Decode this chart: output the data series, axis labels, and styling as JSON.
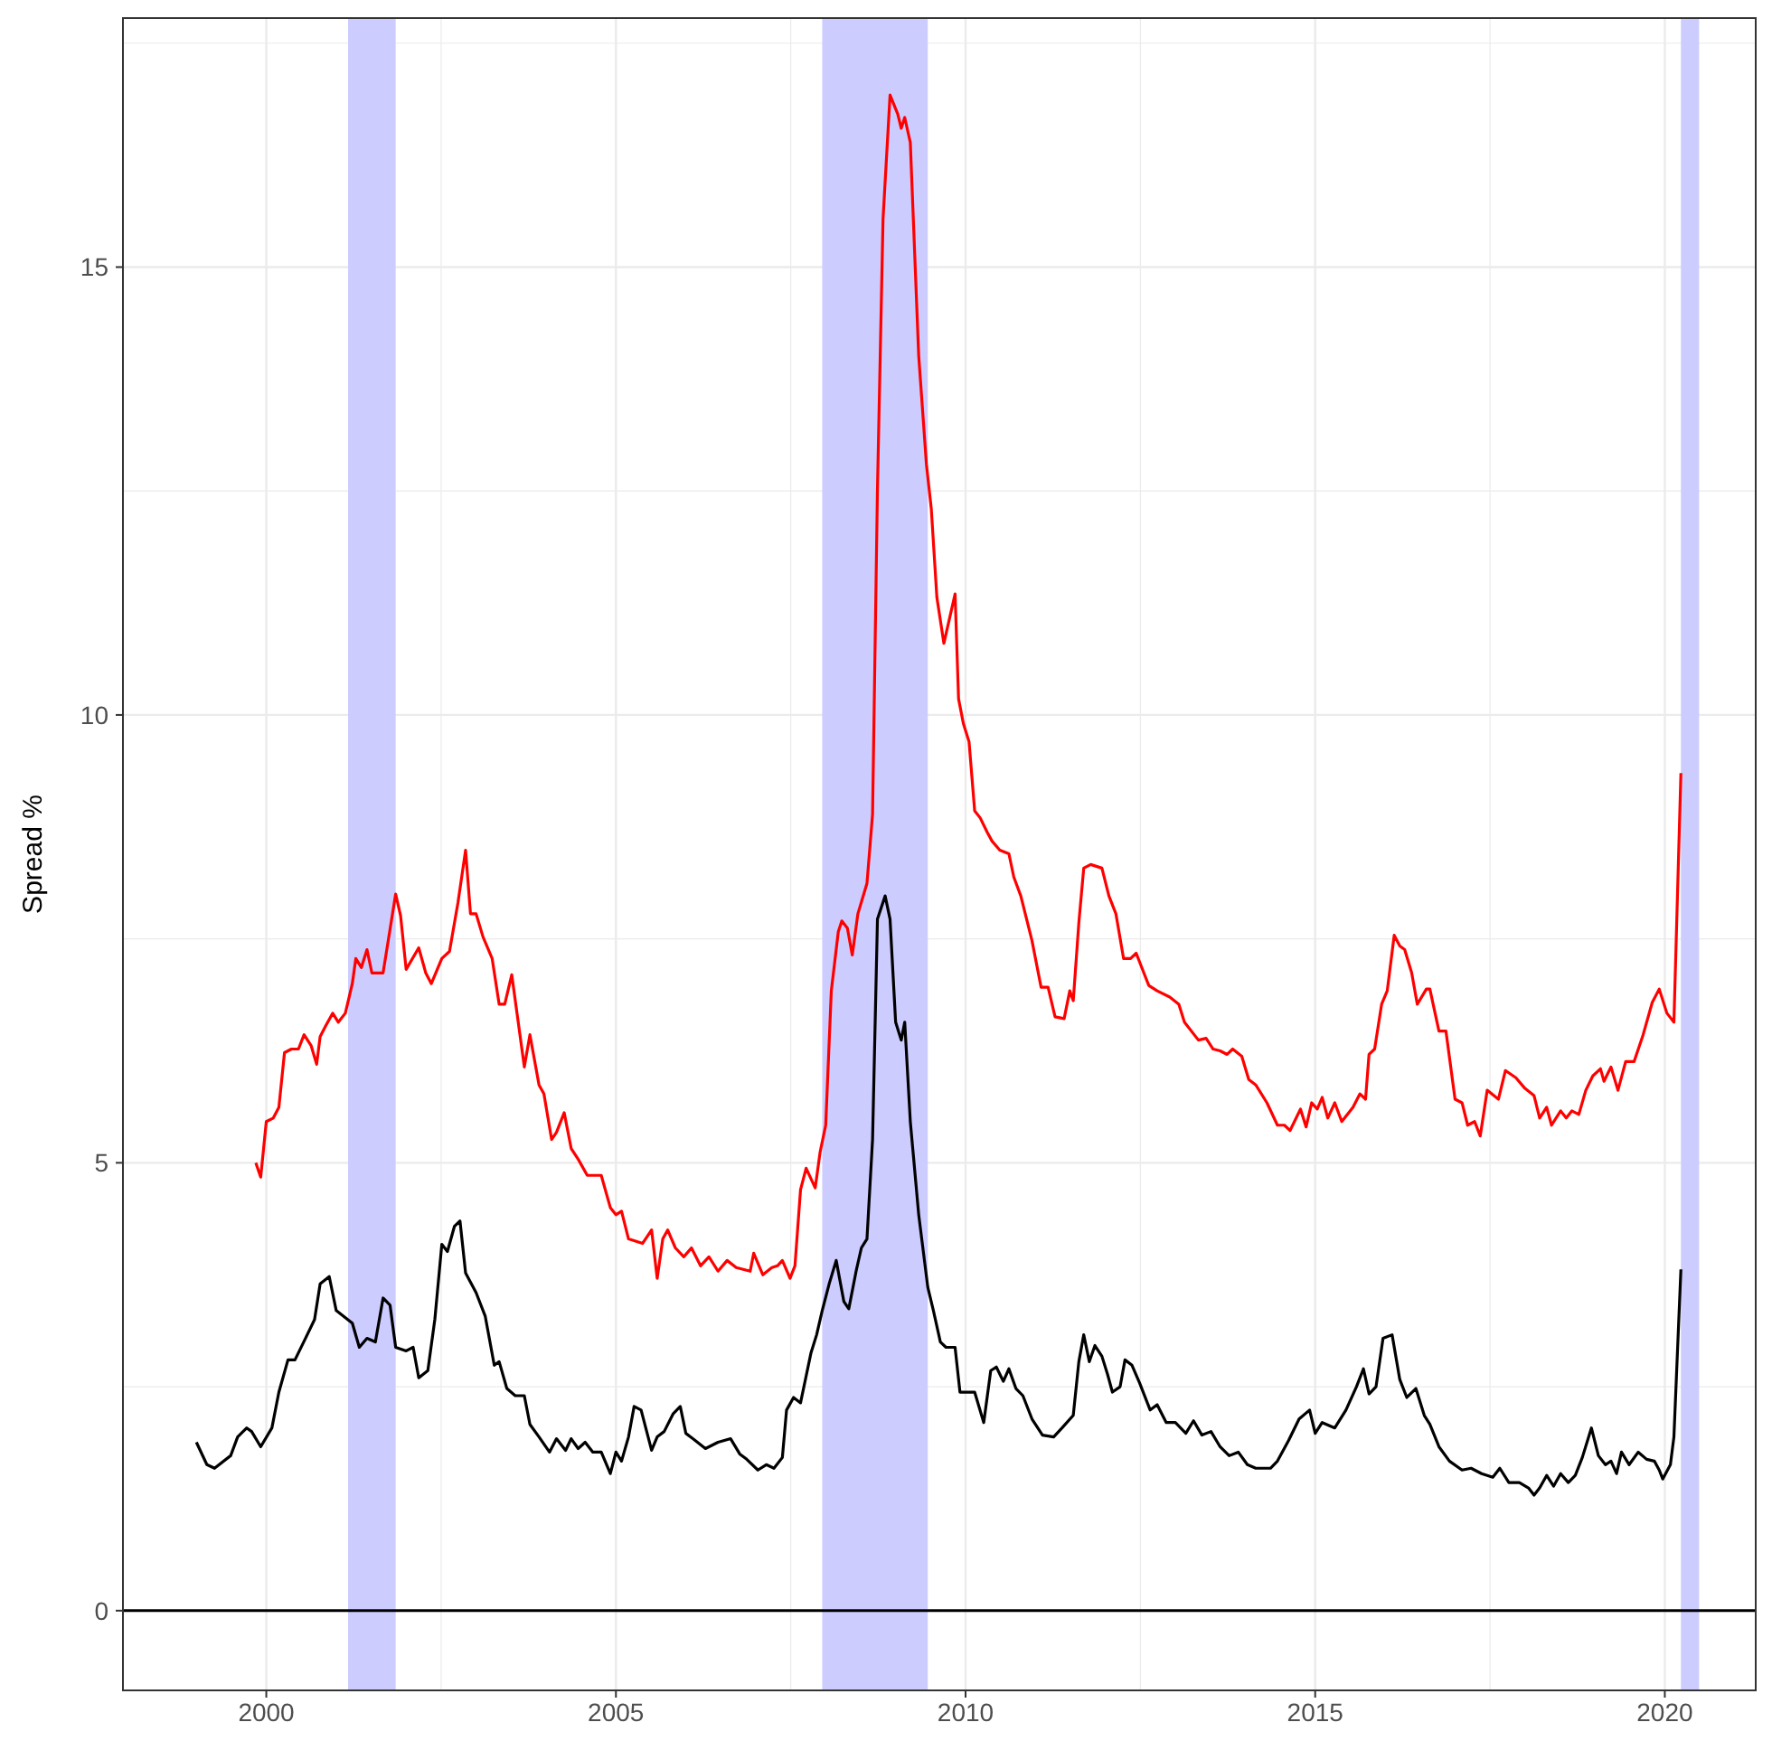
{
  "chart_data": {
    "type": "line",
    "ylabel": "Spread %",
    "xlim": [
      1997.95,
      2021.3
    ],
    "ylim": [
      -0.89,
      17.78
    ],
    "xticks": [
      2000,
      2005,
      2010,
      2015,
      2020
    ],
    "yticks": [
      0,
      5,
      10,
      15
    ],
    "grid": true,
    "line_style": "solid",
    "marker": "none",
    "ref_lines": [
      {
        "axis": "y",
        "value": 0,
        "color": "#000000",
        "line_style": "solid"
      }
    ],
    "bands": [
      {
        "axis": "x",
        "from": 2001.17,
        "to": 2001.85,
        "color": "#ccccff"
      },
      {
        "axis": "x",
        "from": 2007.95,
        "to": 2009.46,
        "color": "#ccccff"
      },
      {
        "axis": "x",
        "from": 2020.23,
        "to": 2020.49,
        "color": "#ccccff"
      }
    ],
    "series": [
      {
        "color": "#ff0000",
        "x": [
          1999.85,
          1999.92,
          2000.0,
          2000.1,
          2000.18,
          2000.26,
          2000.36,
          2000.46,
          2000.54,
          2000.64,
          2000.72,
          2000.77,
          2000.85,
          2000.95,
          2001.03,
          2001.13,
          2001.23,
          2001.28,
          2001.36,
          2001.44,
          2001.51,
          2001.67,
          2001.85,
          2001.92,
          2002.0,
          2002.18,
          2002.28,
          2002.36,
          2002.51,
          2002.62,
          2002.74,
          2002.85,
          2002.92,
          2003.0,
          2003.1,
          2003.23,
          2003.33,
          2003.41,
          2003.51,
          2003.69,
          2003.77,
          2003.9,
          2003.97,
          2004.08,
          2004.15,
          2004.26,
          2004.36,
          2004.46,
          2004.59,
          2004.79,
          2004.92,
          2005.0,
          2005.08,
          2005.18,
          2005.38,
          2005.51,
          2005.59,
          2005.67,
          2005.74,
          2005.85,
          2005.97,
          2006.08,
          2006.21,
          2006.33,
          2006.46,
          2006.59,
          2006.72,
          2006.92,
          2006.97,
          2007.1,
          2007.23,
          2007.31,
          2007.38,
          2007.49,
          2007.56,
          2007.64,
          2007.72,
          2007.85,
          2007.92,
          2008.0,
          2008.08,
          2008.18,
          2008.23,
          2008.31,
          2008.38,
          2008.46,
          2008.59,
          2008.67,
          2008.74,
          2008.82,
          2008.92,
          2009.03,
          2009.08,
          2009.13,
          2009.21,
          2009.33,
          2009.44,
          2009.51,
          2009.59,
          2009.69,
          2009.85,
          2009.9,
          2009.97,
          2010.05,
          2010.13,
          2010.21,
          2010.31,
          2010.38,
          2010.49,
          2010.62,
          2010.69,
          2010.79,
          2010.95,
          2011.08,
          2011.18,
          2011.28,
          2011.41,
          2011.49,
          2011.54,
          2011.62,
          2011.69,
          2011.79,
          2011.95,
          2012.05,
          2012.15,
          2012.26,
          2012.36,
          2012.44,
          2012.62,
          2012.74,
          2012.92,
          2013.05,
          2013.13,
          2013.33,
          2013.44,
          2013.54,
          2013.64,
          2013.74,
          2013.82,
          2013.95,
          2014.05,
          2014.15,
          2014.31,
          2014.46,
          2014.56,
          2014.64,
          2014.79,
          2014.87,
          2014.95,
          2015.03,
          2015.1,
          2015.18,
          2015.28,
          2015.38,
          2015.54,
          2015.64,
          2015.72,
          2015.77,
          2015.85,
          2015.95,
          2016.03,
          2016.13,
          2016.21,
          2016.28,
          2016.38,
          2016.46,
          2016.59,
          2016.64,
          2016.77,
          2016.87,
          2017.0,
          2017.1,
          2017.18,
          2017.28,
          2017.36,
          2017.46,
          2017.62,
          2017.72,
          2017.87,
          2018.0,
          2018.13,
          2018.21,
          2018.31,
          2018.38,
          2018.51,
          2018.59,
          2018.67,
          2018.77,
          2018.87,
          2018.97,
          2019.08,
          2019.13,
          2019.23,
          2019.33,
          2019.44,
          2019.56,
          2019.69,
          2019.82,
          2019.92,
          2020.03,
          2020.13,
          2020.23
        ],
        "values": [
          5.0,
          4.84,
          5.46,
          5.5,
          5.62,
          6.23,
          6.27,
          6.27,
          6.43,
          6.31,
          6.1,
          6.41,
          6.53,
          6.67,
          6.57,
          6.67,
          7.0,
          7.28,
          7.18,
          7.38,
          7.12,
          7.12,
          8.0,
          7.76,
          7.16,
          7.4,
          7.12,
          7.0,
          7.28,
          7.36,
          7.9,
          8.49,
          7.78,
          7.78,
          7.52,
          7.28,
          6.77,
          6.77,
          7.1,
          6.07,
          6.43,
          5.87,
          5.77,
          5.26,
          5.34,
          5.56,
          5.16,
          5.04,
          4.86,
          4.86,
          4.5,
          4.42,
          4.46,
          4.15,
          4.1,
          4.25,
          3.71,
          4.15,
          4.25,
          4.05,
          3.95,
          4.05,
          3.85,
          3.95,
          3.79,
          3.91,
          3.83,
          3.79,
          3.99,
          3.75,
          3.83,
          3.85,
          3.91,
          3.71,
          3.85,
          4.7,
          4.94,
          4.72,
          5.12,
          5.42,
          6.92,
          7.58,
          7.7,
          7.62,
          7.32,
          7.78,
          8.12,
          8.89,
          12.52,
          15.54,
          16.92,
          16.71,
          16.55,
          16.67,
          16.39,
          14.01,
          12.8,
          12.3,
          11.31,
          10.8,
          11.35,
          10.18,
          9.9,
          9.7,
          8.93,
          8.85,
          8.69,
          8.59,
          8.49,
          8.45,
          8.19,
          7.98,
          7.48,
          6.96,
          6.96,
          6.63,
          6.61,
          6.92,
          6.81,
          7.68,
          8.29,
          8.33,
          8.29,
          7.98,
          7.78,
          7.28,
          7.28,
          7.34,
          6.98,
          6.92,
          6.85,
          6.77,
          6.57,
          6.37,
          6.39,
          6.27,
          6.25,
          6.21,
          6.27,
          6.19,
          5.93,
          5.87,
          5.67,
          5.42,
          5.42,
          5.36,
          5.6,
          5.4,
          5.67,
          5.6,
          5.73,
          5.5,
          5.67,
          5.46,
          5.62,
          5.77,
          5.71,
          6.21,
          6.27,
          6.77,
          6.92,
          7.54,
          7.42,
          7.38,
          7.12,
          6.77,
          6.94,
          6.94,
          6.47,
          6.47,
          5.71,
          5.67,
          5.42,
          5.46,
          5.3,
          5.81,
          5.71,
          6.03,
          5.95,
          5.83,
          5.75,
          5.5,
          5.62,
          5.42,
          5.58,
          5.5,
          5.58,
          5.54,
          5.81,
          5.97,
          6.05,
          5.91,
          6.07,
          5.81,
          6.13,
          6.13,
          6.43,
          6.79,
          6.94,
          6.67,
          6.57,
          9.35
        ]
      },
      {
        "color": "#000000",
        "x": [
          1999.0,
          1999.15,
          1999.26,
          1999.49,
          1999.59,
          1999.72,
          1999.79,
          1999.92,
          2000.08,
          2000.18,
          2000.31,
          2000.41,
          2000.56,
          2000.69,
          2000.77,
          2000.9,
          2001.0,
          2001.23,
          2001.33,
          2001.44,
          2001.56,
          2001.67,
          2001.77,
          2001.85,
          2002.0,
          2002.1,
          2002.18,
          2002.31,
          2002.41,
          2002.51,
          2002.59,
          2002.69,
          2002.77,
          2002.85,
          2003.0,
          2003.13,
          2003.26,
          2003.33,
          2003.44,
          2003.56,
          2003.69,
          2003.77,
          2003.9,
          2004.05,
          2004.15,
          2004.28,
          2004.36,
          2004.46,
          2004.56,
          2004.67,
          2004.79,
          2004.92,
          2005.0,
          2005.08,
          2005.18,
          2005.26,
          2005.36,
          2005.51,
          2005.59,
          2005.69,
          2005.82,
          2005.92,
          2006.0,
          2006.1,
          2006.28,
          2006.46,
          2006.64,
          2006.77,
          2006.87,
          2007.03,
          2007.15,
          2007.26,
          2007.38,
          2007.44,
          2007.54,
          2007.64,
          2007.79,
          2007.87,
          2007.95,
          2008.05,
          2008.15,
          2008.26,
          2008.33,
          2008.44,
          2008.51,
          2008.59,
          2008.67,
          2008.74,
          2008.85,
          2008.92,
          2009.0,
          2009.08,
          2009.13,
          2009.21,
          2009.33,
          2009.46,
          2009.54,
          2009.64,
          2009.72,
          2009.85,
          2009.92,
          2010.05,
          2010.13,
          2010.26,
          2010.36,
          2010.44,
          2010.54,
          2010.62,
          2010.72,
          2010.82,
          2010.95,
          2011.1,
          2011.26,
          2011.38,
          2011.54,
          2011.62,
          2011.69,
          2011.77,
          2011.85,
          2011.95,
          2012.03,
          2012.1,
          2012.21,
          2012.28,
          2012.38,
          2012.49,
          2012.64,
          2012.74,
          2012.87,
          2013.0,
          2013.15,
          2013.26,
          2013.38,
          2013.51,
          2013.64,
          2013.77,
          2013.9,
          2014.03,
          2014.15,
          2014.36,
          2014.46,
          2014.62,
          2014.77,
          2014.92,
          2015.0,
          2015.1,
          2015.28,
          2015.44,
          2015.59,
          2015.69,
          2015.77,
          2015.87,
          2015.97,
          2016.1,
          2016.21,
          2016.31,
          2016.44,
          2016.56,
          2016.64,
          2016.77,
          2016.92,
          2017.1,
          2017.23,
          2017.38,
          2017.54,
          2017.64,
          2017.77,
          2017.92,
          2018.05,
          2018.13,
          2018.21,
          2018.31,
          2018.41,
          2018.51,
          2018.62,
          2018.72,
          2018.82,
          2018.95,
          2019.05,
          2019.15,
          2019.23,
          2019.31,
          2019.38,
          2019.49,
          2019.62,
          2019.74,
          2019.85,
          2019.92,
          2019.97,
          2020.08,
          2020.13,
          2020.23
        ],
        "values": [
          1.88,
          1.63,
          1.59,
          1.73,
          1.94,
          2.04,
          2.0,
          1.83,
          2.04,
          2.44,
          2.8,
          2.8,
          3.04,
          3.25,
          3.65,
          3.73,
          3.35,
          3.21,
          2.94,
          3.04,
          3.0,
          3.49,
          3.41,
          2.94,
          2.9,
          2.94,
          2.6,
          2.68,
          3.25,
          4.09,
          4.01,
          4.29,
          4.35,
          3.77,
          3.55,
          3.29,
          2.74,
          2.78,
          2.48,
          2.4,
          2.4,
          2.08,
          1.94,
          1.77,
          1.92,
          1.79,
          1.92,
          1.81,
          1.88,
          1.77,
          1.77,
          1.53,
          1.77,
          1.67,
          1.94,
          2.28,
          2.24,
          1.79,
          1.94,
          2.0,
          2.2,
          2.28,
          1.98,
          1.92,
          1.81,
          1.88,
          1.92,
          1.75,
          1.69,
          1.57,
          1.63,
          1.59,
          1.71,
          2.24,
          2.38,
          2.32,
          2.88,
          3.08,
          3.35,
          3.65,
          3.91,
          3.45,
          3.37,
          3.81,
          4.05,
          4.15,
          5.26,
          7.72,
          7.98,
          7.72,
          6.57,
          6.37,
          6.57,
          5.46,
          4.42,
          3.61,
          3.35,
          3.0,
          2.94,
          2.94,
          2.44,
          2.44,
          2.44,
          2.1,
          2.68,
          2.72,
          2.56,
          2.7,
          2.48,
          2.4,
          2.14,
          1.96,
          1.94,
          2.04,
          2.18,
          2.78,
          3.08,
          2.78,
          2.96,
          2.84,
          2.64,
          2.44,
          2.5,
          2.8,
          2.74,
          2.54,
          2.24,
          2.3,
          2.1,
          2.1,
          1.98,
          2.12,
          1.96,
          2.0,
          1.83,
          1.73,
          1.77,
          1.63,
          1.59,
          1.59,
          1.67,
          1.9,
          2.14,
          2.24,
          1.98,
          2.1,
          2.04,
          2.24,
          2.5,
          2.7,
          2.42,
          2.5,
          3.04,
          3.08,
          2.58,
          2.38,
          2.48,
          2.18,
          2.08,
          1.83,
          1.67,
          1.57,
          1.59,
          1.53,
          1.49,
          1.59,
          1.43,
          1.43,
          1.37,
          1.29,
          1.37,
          1.51,
          1.39,
          1.53,
          1.43,
          1.51,
          1.71,
          2.04,
          1.73,
          1.63,
          1.67,
          1.53,
          1.77,
          1.63,
          1.77,
          1.69,
          1.67,
          1.57,
          1.47,
          1.63,
          1.94,
          3.81
        ]
      }
    ]
  }
}
